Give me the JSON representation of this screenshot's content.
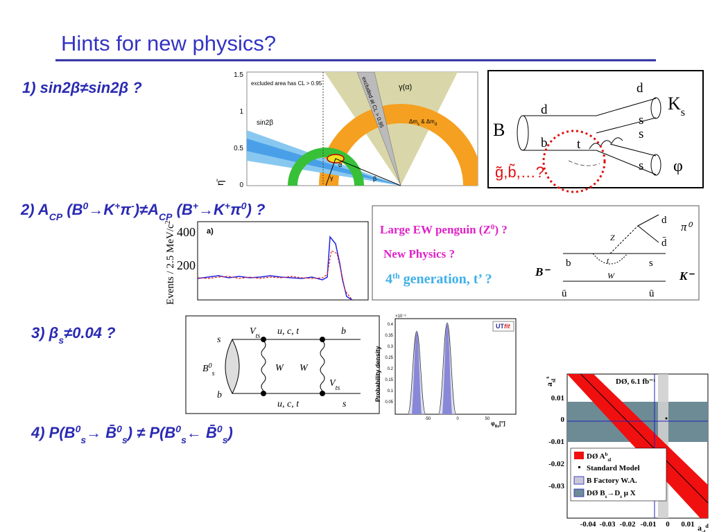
{
  "title": "Hints for new physics?",
  "hints": [
    [
      "1) sin2β≠sin2β ?"
    ],
    [
      "2) A",
      "CP",
      " (B",
      "0",
      "→K",
      "+",
      "π",
      "-",
      ")≠A",
      "CP",
      " (B",
      "+",
      "→K",
      "+",
      "π",
      "0",
      ") ?"
    ],
    [
      "3) β",
      "s",
      "≠0.04 ?"
    ],
    [
      "4) P(B",
      "0",
      "s",
      "→ ",
      "B̄",
      "0",
      "s",
      ") ≠ P(B",
      "0",
      "s",
      "← ",
      "B̄",
      "0",
      "s",
      ")"
    ]
  ],
  "figures": {
    "ckm": {
      "yticks": [
        "1.5",
        "1",
        "0.5",
        "0"
      ],
      "ylabel": "η̄",
      "note": "excluded area has CL > 0.95",
      "sin2b": "sin2β",
      "gamma_alpha": "γ(α)",
      "excluded": "excluded at CL > 0.95",
      "dm": "Δm",
      "dm_s": "s",
      "dm_and": " & Δm",
      "dm_d": "d",
      "alpha": "α",
      "gamma": "γ",
      "beta": "β"
    },
    "bphiks": {
      "d_top": "d",
      "K": "K",
      "Ks_sub": "s",
      "B": "B",
      "d_left": "d",
      "s1": "s",
      "s2": "s",
      "b": "b",
      "t": "t",
      "s3": "s",
      "phi": "φ",
      "susy": "g̃,b̃,…?"
    },
    "histogram": {
      "yticks": [
        "400",
        "200"
      ],
      "ylabel": "Events / 2.5 MeV/c",
      "ylabel_sup": "2",
      "panel": "a)"
    },
    "penguin": {
      "line1": [
        "Large EW penguin (Z",
        "0",
        ") ?"
      ],
      "line2": "New Physics ?",
      "line3": [
        "4",
        "th",
        " generation, t’ ?"
      ],
      "Bminus": "B⁻",
      "b": "b",
      "s": "s",
      "ubar1": "ū",
      "ubar2": "ū",
      "Z": "Z",
      "t": "t",
      "W": "W",
      "d": "d",
      "dbar": "d̄",
      "pi0": "π⁰",
      "Kminus": "K⁻"
    },
    "box": {
      "s_top": "s",
      "Vts_top": "V",
      "Vts_top_sub": "ts",
      "uct_top": "u, c, t",
      "b_top": "b",
      "Bs": "B",
      "Bs_sup": "0",
      "Bs_sub": "s",
      "W1": "W",
      "W2": "W",
      "Vts_bot": "V",
      "Vts_bot_sub": "ts",
      "b_bot": "b",
      "uct_bot": "u, c, t",
      "s_bot": "s"
    },
    "phis": {
      "exp": "×10⁻³",
      "yticks": [
        "0.4",
        "0.35",
        "0.3",
        "0.25",
        "0.2",
        "0.15",
        "0.1",
        "0.05"
      ],
      "xticks": [
        "-50",
        "0",
        "50"
      ],
      "ylabel": "Probability density",
      "xlabel": "φ",
      "xlabel_sub": "Bs",
      "xlabel_unit": "[°]",
      "logo": [
        "UT",
        "fit"
      ]
    },
    "asl": {
      "label": "DØ, 6.1 fb⁻¹",
      "yticks": [
        "0.01",
        "0",
        "-0.01",
        "-0.02",
        "-0.03"
      ],
      "xticks": [
        "-0.04",
        "-0.03",
        "-0.02",
        "-0.01",
        "0",
        "0.01"
      ],
      "ylabel": "a",
      "ylabel_sub": "sl",
      "ylabel_sup": "s",
      "xlabel": "a",
      "xlabel_sub": "sl",
      "xlabel_sup": "d",
      "legend": [
        "DØ A",
        "Standard Model",
        "B Factory W.A.",
        "DØ B",
        "b",
        "sl",
        "s",
        "→D",
        "s",
        " μ X"
      ]
    }
  }
}
